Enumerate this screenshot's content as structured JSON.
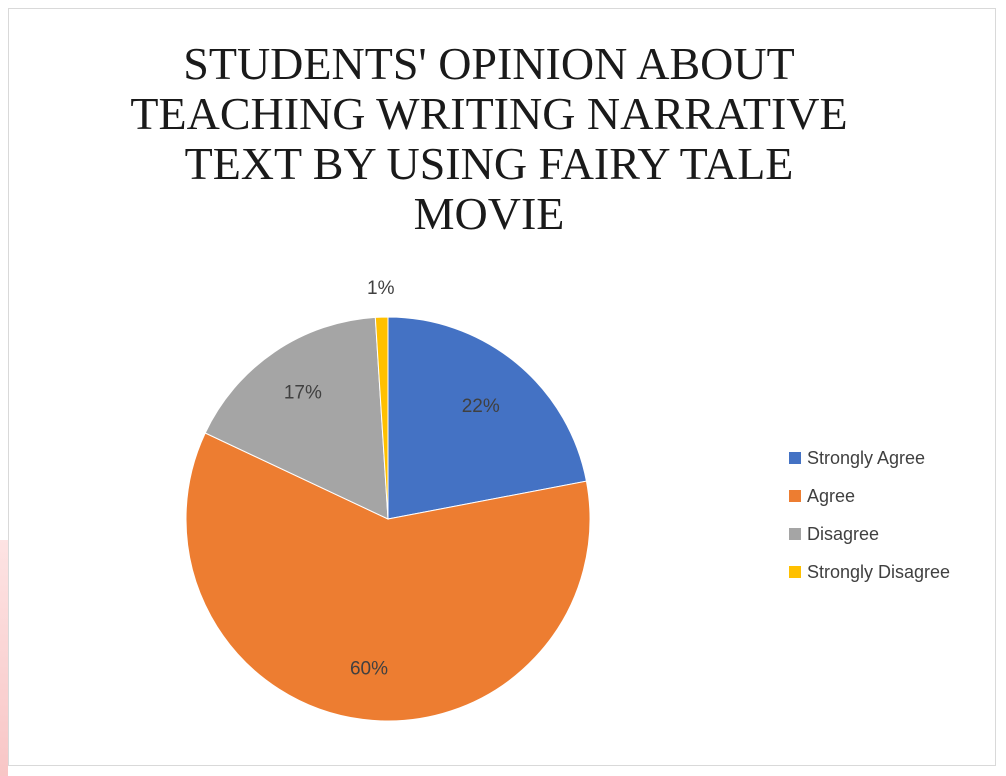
{
  "chart_data": {
    "type": "pie",
    "title": "STUDENTS' OPINION ABOUT TEACHING WRITING NARRATIVE TEXT BY USING FAIRY TALE MOVIE",
    "title_lines": [
      "STUDENTS' OPINION ABOUT",
      "TEACHING WRITING NARRATIVE",
      "TEXT BY USING FAIRY TALE",
      "MOVIE"
    ],
    "categories": [
      "Strongly Agree",
      "Agree",
      "Disagree",
      "Strongly Disagree"
    ],
    "values": [
      22,
      60,
      17,
      1
    ],
    "labels": [
      "22%",
      "60%",
      "17%",
      "1%"
    ],
    "colors": [
      "#4472c4",
      "#ed7d31",
      "#a5a5a5",
      "#ffc000"
    ],
    "legend_position": "right",
    "start_angle_deg": 0,
    "direction": "clockwise"
  }
}
